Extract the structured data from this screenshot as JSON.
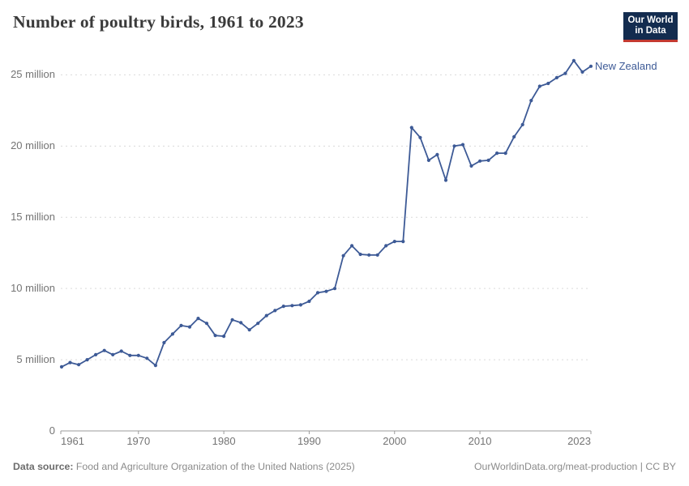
{
  "header": {
    "title": "Number of poultry birds, 1961 to 2023"
  },
  "logo": {
    "line1": "Our World",
    "line2": "in Data",
    "bg_color": "#132c4f",
    "accent_color": "#c43a31"
  },
  "colors": {
    "line": "#3d5a96",
    "entity_label": "#3d5a96",
    "grid": "#dadada",
    "axis": "#9b9b9b",
    "tick_text": "#747474",
    "title_text": "#3a3a3a"
  },
  "chart_data": {
    "type": "line",
    "title": "Number of poultry birds, 1961 to 2023",
    "unit": "million birds",
    "xlabel": "",
    "ylabel": "",
    "grid": "horizontal dashed",
    "legend_position": "end-of-line label",
    "xlim": [
      1961,
      2023
    ],
    "ylim": [
      0,
      26.3
    ],
    "x_ticks": [
      "1961",
      "1970",
      "1980",
      "1990",
      "2000",
      "2010",
      "2023"
    ],
    "x_tick_years": [
      1961,
      1970,
      1980,
      1990,
      2000,
      2010,
      2023
    ],
    "y_ticks": [
      {
        "v": 0,
        "label": "0"
      },
      {
        "v": 5,
        "label": "5 million"
      },
      {
        "v": 10,
        "label": "10 million"
      },
      {
        "v": 15,
        "label": "15 million"
      },
      {
        "v": 20,
        "label": "20 million"
      },
      {
        "v": 25,
        "label": "25 million"
      }
    ],
    "x": [
      1961,
      1962,
      1963,
      1964,
      1965,
      1966,
      1967,
      1968,
      1969,
      1970,
      1971,
      1972,
      1973,
      1974,
      1975,
      1976,
      1977,
      1978,
      1979,
      1980,
      1981,
      1982,
      1983,
      1984,
      1985,
      1986,
      1987,
      1988,
      1989,
      1990,
      1991,
      1992,
      1993,
      1994,
      1995,
      1996,
      1997,
      1998,
      1999,
      2000,
      2001,
      2002,
      2003,
      2004,
      2005,
      2006,
      2007,
      2008,
      2009,
      2010,
      2011,
      2012,
      2013,
      2014,
      2015,
      2016,
      2017,
      2018,
      2019,
      2020,
      2021,
      2022,
      2023
    ],
    "series": [
      {
        "name": "New Zealand",
        "values": [
          4.5,
          4.8,
          4.65,
          5.0,
          5.35,
          5.65,
          5.35,
          5.6,
          5.3,
          5.3,
          5.1,
          4.6,
          6.2,
          6.8,
          7.4,
          7.3,
          7.9,
          7.55,
          6.7,
          6.65,
          7.8,
          7.6,
          7.1,
          7.55,
          8.1,
          8.45,
          8.75,
          8.8,
          8.85,
          9.1,
          9.7,
          9.8,
          10.0,
          12.3,
          13.0,
          12.4,
          12.35,
          12.35,
          13.0,
          13.3,
          13.3,
          21.3,
          20.6,
          19.0,
          19.4,
          17.6,
          20.0,
          20.1,
          18.6,
          18.95,
          19.0,
          19.5,
          19.5,
          20.65,
          21.5,
          23.2,
          24.2,
          24.4,
          24.8,
          25.1,
          26.0,
          25.2,
          25.6
        ]
      }
    ]
  },
  "footer": {
    "source_label": "Data source:",
    "source_text": "Food and Agriculture Organization of the United Nations (2025)",
    "credit": "OurWorldinData.org/meat-production | CC BY"
  }
}
